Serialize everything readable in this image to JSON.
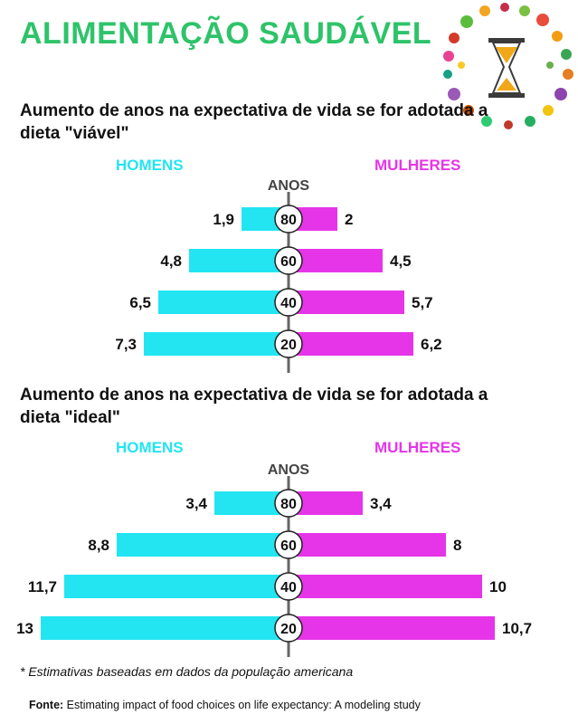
{
  "title": "ALIMENTAÇÃO SAUDÁVEL",
  "colors": {
    "title": "#2ec36a",
    "men": "#23e5f2",
    "women": "#e635e8",
    "axis": "#666666",
    "anos_label": "#444444"
  },
  "decoration_icon": "hourglass-food-wreath-icon",
  "chart_data": [
    {
      "type": "bar",
      "title": "Aumento de anos na expectativa de vida se for adotada a dieta \"viável\"",
      "left_label": "HOMENS",
      "right_label": "MULHERES",
      "axis_label": "ANOS",
      "categories": [
        "80",
        "60",
        "40",
        "20"
      ],
      "series": [
        {
          "name": "HOMENS",
          "labels": [
            "1,9",
            "4,8",
            "6,5",
            "7,3"
          ],
          "values": [
            1.9,
            4.8,
            6.5,
            7.3
          ]
        },
        {
          "name": "MULHERES",
          "labels": [
            "2",
            "4,5",
            "5,7",
            "6,2"
          ],
          "values": [
            2,
            4.5,
            5.7,
            6.2
          ]
        }
      ]
    },
    {
      "type": "bar",
      "title": "Aumento de anos na expectativa de vida se for adotada a dieta \"ideal\"",
      "left_label": "HOMENS",
      "right_label": "MULHERES",
      "axis_label": "ANOS",
      "categories": [
        "80",
        "60",
        "40",
        "20"
      ],
      "series": [
        {
          "name": "HOMENS",
          "labels": [
            "3,4",
            "8,8",
            "11,7",
            "13"
          ],
          "values": [
            3.4,
            8.8,
            11.7,
            13
          ]
        },
        {
          "name": "MULHERES",
          "labels": [
            "3,4",
            "8",
            "10",
            "10,7"
          ],
          "values": [
            3.4,
            8,
            10,
            10.7
          ]
        }
      ]
    }
  ],
  "footnote": "* Estimativas baseadas em dados da população americana",
  "source": {
    "label": "Fonte:",
    "text": " Estimating impact of food choices on life expectancy: A modeling study"
  }
}
